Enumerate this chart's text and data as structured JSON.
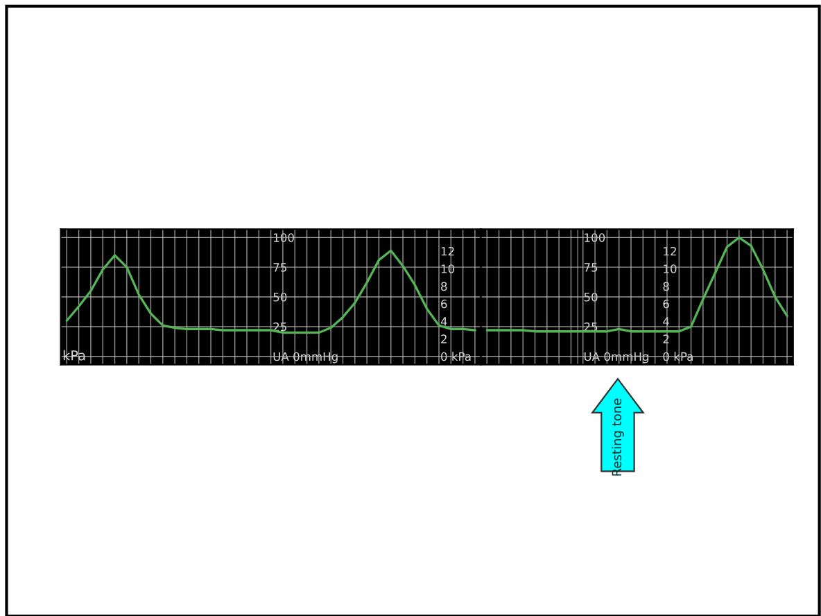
{
  "chart_data": [
    {
      "type": "line",
      "categories": [
        null,
        null,
        null,
        null,
        null,
        null,
        null,
        null,
        null,
        null,
        null,
        null,
        null,
        null,
        null,
        null,
        null,
        null,
        null,
        null,
        null,
        null,
        null,
        null,
        null,
        null,
        null,
        null,
        null,
        null,
        null,
        null,
        null,
        null,
        null
      ],
      "series": [
        {
          "color": "#55b455",
          "values": [
            30,
            42,
            55,
            73,
            85,
            75,
            52,
            36,
            26,
            24,
            23,
            23,
            23,
            22,
            22,
            22,
            22,
            22,
            20,
            20,
            20,
            20,
            24,
            33,
            45,
            62,
            81,
            89,
            76,
            60,
            40,
            26,
            23,
            23,
            22
          ]
        }
      ],
      "ylim": [
        -7,
        107
      ],
      "yticks": [
        {
          "value": 0,
          "label": "UA 0mmHg"
        },
        25,
        50,
        75,
        100
      ],
      "y2lim": [
        -0.95,
        14.5
      ],
      "y2ticks": [
        {
          "value": 0,
          "label": "0 kPa"
        },
        2,
        4,
        6,
        8,
        10,
        12
      ],
      "grid": true,
      "annotations": [
        "kPa"
      ]
    },
    {
      "type": "line",
      "categories": [
        null,
        null,
        null,
        null,
        null,
        null,
        null,
        null,
        null,
        null,
        null,
        null,
        null,
        null,
        null,
        null,
        null,
        null,
        null,
        null,
        null,
        null,
        null,
        null,
        null,
        null
      ],
      "series": [
        {
          "color": "#55b455",
          "values": [
            22,
            22,
            22,
            22,
            21,
            21,
            21,
            21,
            21,
            21,
            21,
            23,
            21,
            21,
            21,
            21,
            21,
            25,
            48,
            70,
            92,
            100,
            93,
            73,
            50,
            34
          ]
        }
      ],
      "ylim": [
        -7,
        107
      ],
      "yticks": [
        {
          "value": 0,
          "label": "UA 0mmHg"
        },
        25,
        50,
        75,
        100
      ],
      "y2lim": [
        -0.95,
        14.5
      ],
      "y2ticks": [
        {
          "value": 0,
          "label": "0 kPa"
        },
        2,
        4,
        6,
        8,
        10,
        12
      ],
      "grid": true,
      "annotations": [
        "Resting tone"
      ]
    }
  ]
}
